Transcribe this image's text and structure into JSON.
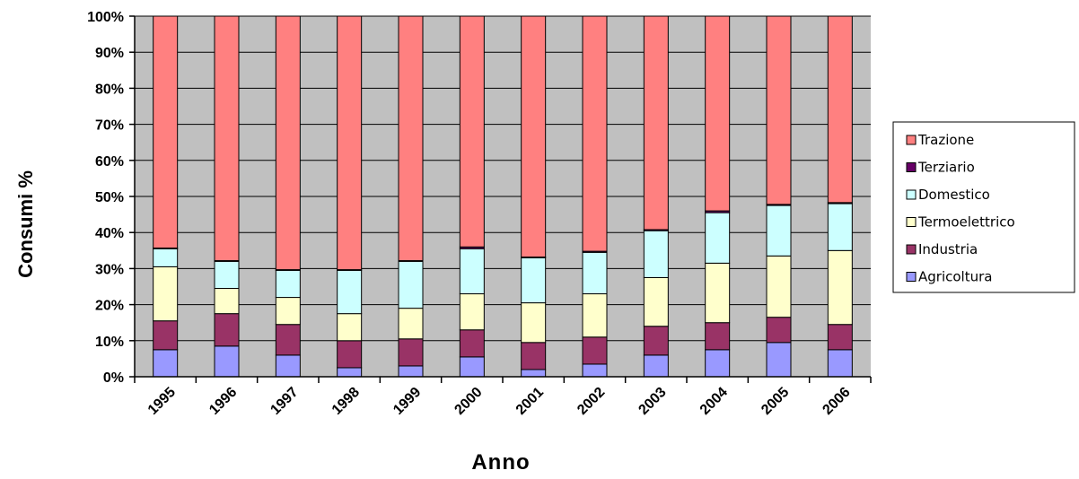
{
  "chart_data": {
    "type": "bar",
    "stacked": true,
    "percent_stacked": true,
    "title": "",
    "xlabel": "Anno",
    "ylabel": "Consumi %",
    "ylim": [
      0,
      100
    ],
    "yticks": [
      "0%",
      "10%",
      "20%",
      "30%",
      "40%",
      "50%",
      "60%",
      "70%",
      "80%",
      "90%",
      "100%"
    ],
    "categories": [
      "1995",
      "1996",
      "1997",
      "1998",
      "1999",
      "2000",
      "2001",
      "2002",
      "2003",
      "2004",
      "2005",
      "2006"
    ],
    "series": [
      {
        "name": "Agricoltura",
        "color": "#9999ff",
        "values": [
          7.5,
          8.5,
          6,
          2.5,
          3,
          5.5,
          2,
          3.5,
          6,
          7.5,
          9.5,
          7.5
        ]
      },
      {
        "name": "Industria",
        "color": "#993366",
        "values": [
          8,
          9,
          8.5,
          7.5,
          7.5,
          7.5,
          7.5,
          7.5,
          8,
          7.5,
          7,
          7
        ]
      },
      {
        "name": "Termoelettrico",
        "color": "#ffffcc",
        "values": [
          15,
          7,
          7.5,
          7.5,
          8.5,
          10,
          11,
          12,
          13.5,
          16.5,
          17,
          20.5
        ]
      },
      {
        "name": "Domestico",
        "color": "#ccffff",
        "values": [
          5,
          7.5,
          7.5,
          12,
          13,
          12.5,
          12.5,
          11.5,
          13,
          14,
          14,
          13
        ]
      },
      {
        "name": "Terziario",
        "color": "#660066",
        "values": [
          0.2,
          0.2,
          0.2,
          0.2,
          0.2,
          0.5,
          0.2,
          0.3,
          0.3,
          0.5,
          0.3,
          0.3
        ]
      },
      {
        "name": "Trazione",
        "color": "#ff8080",
        "values": [
          64.3,
          67.8,
          70.3,
          70.3,
          67.8,
          64,
          66.8,
          65.2,
          59.2,
          54,
          52.2,
          51.7
        ]
      }
    ],
    "plot_background": "#c0c0c0",
    "grid": true,
    "legend_position": "right"
  }
}
